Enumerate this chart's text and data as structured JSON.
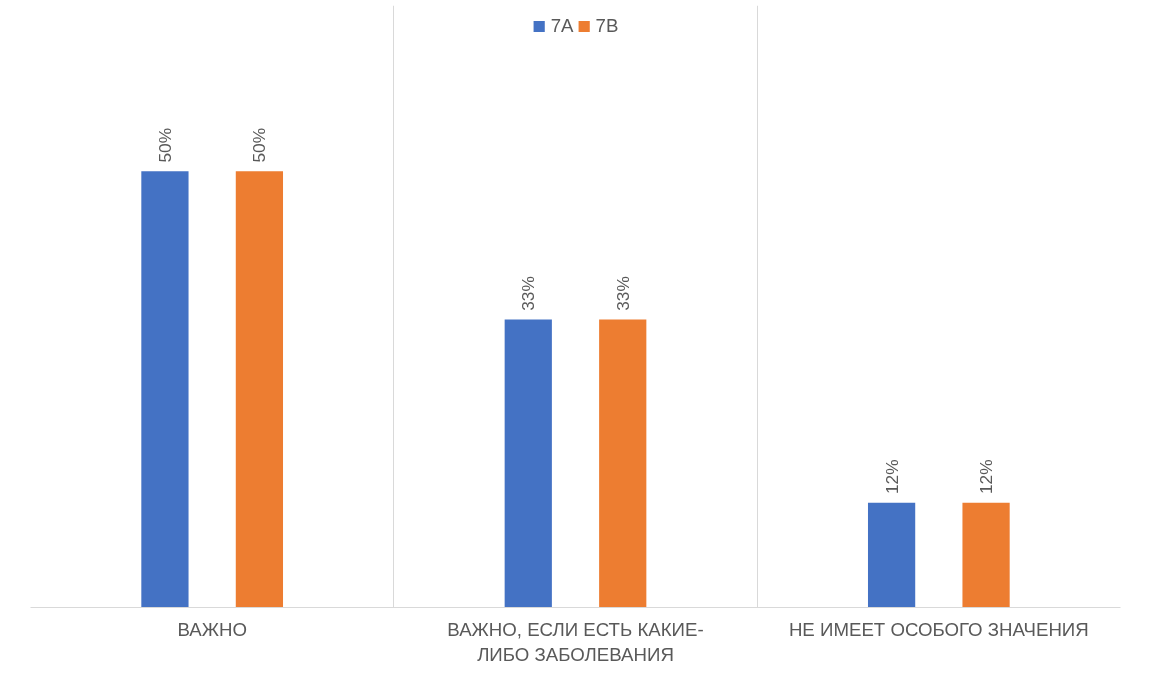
{
  "chart_data": {
    "type": "bar",
    "categories": [
      "ВАЖНО",
      "ВАЖНО, ЕСЛИ ЕСТЬ КАКИЕ-ЛИБО ЗАБОЛЕВАНИЯ",
      "НЕ ИМЕЕТ ОСОБОГО ЗНАЧЕНИЯ"
    ],
    "series": [
      {
        "name": "7А",
        "color": "#4472c4",
        "values": [
          50,
          33,
          12
        ],
        "value_labels": [
          "50%",
          "33%",
          "12%"
        ]
      },
      {
        "name": "7В",
        "color": "#ed7d31",
        "values": [
          50,
          33,
          12
        ],
        "value_labels": [
          "50%",
          "33%",
          "12%"
        ]
      }
    ],
    "grid": "x",
    "legend": "top"
  }
}
